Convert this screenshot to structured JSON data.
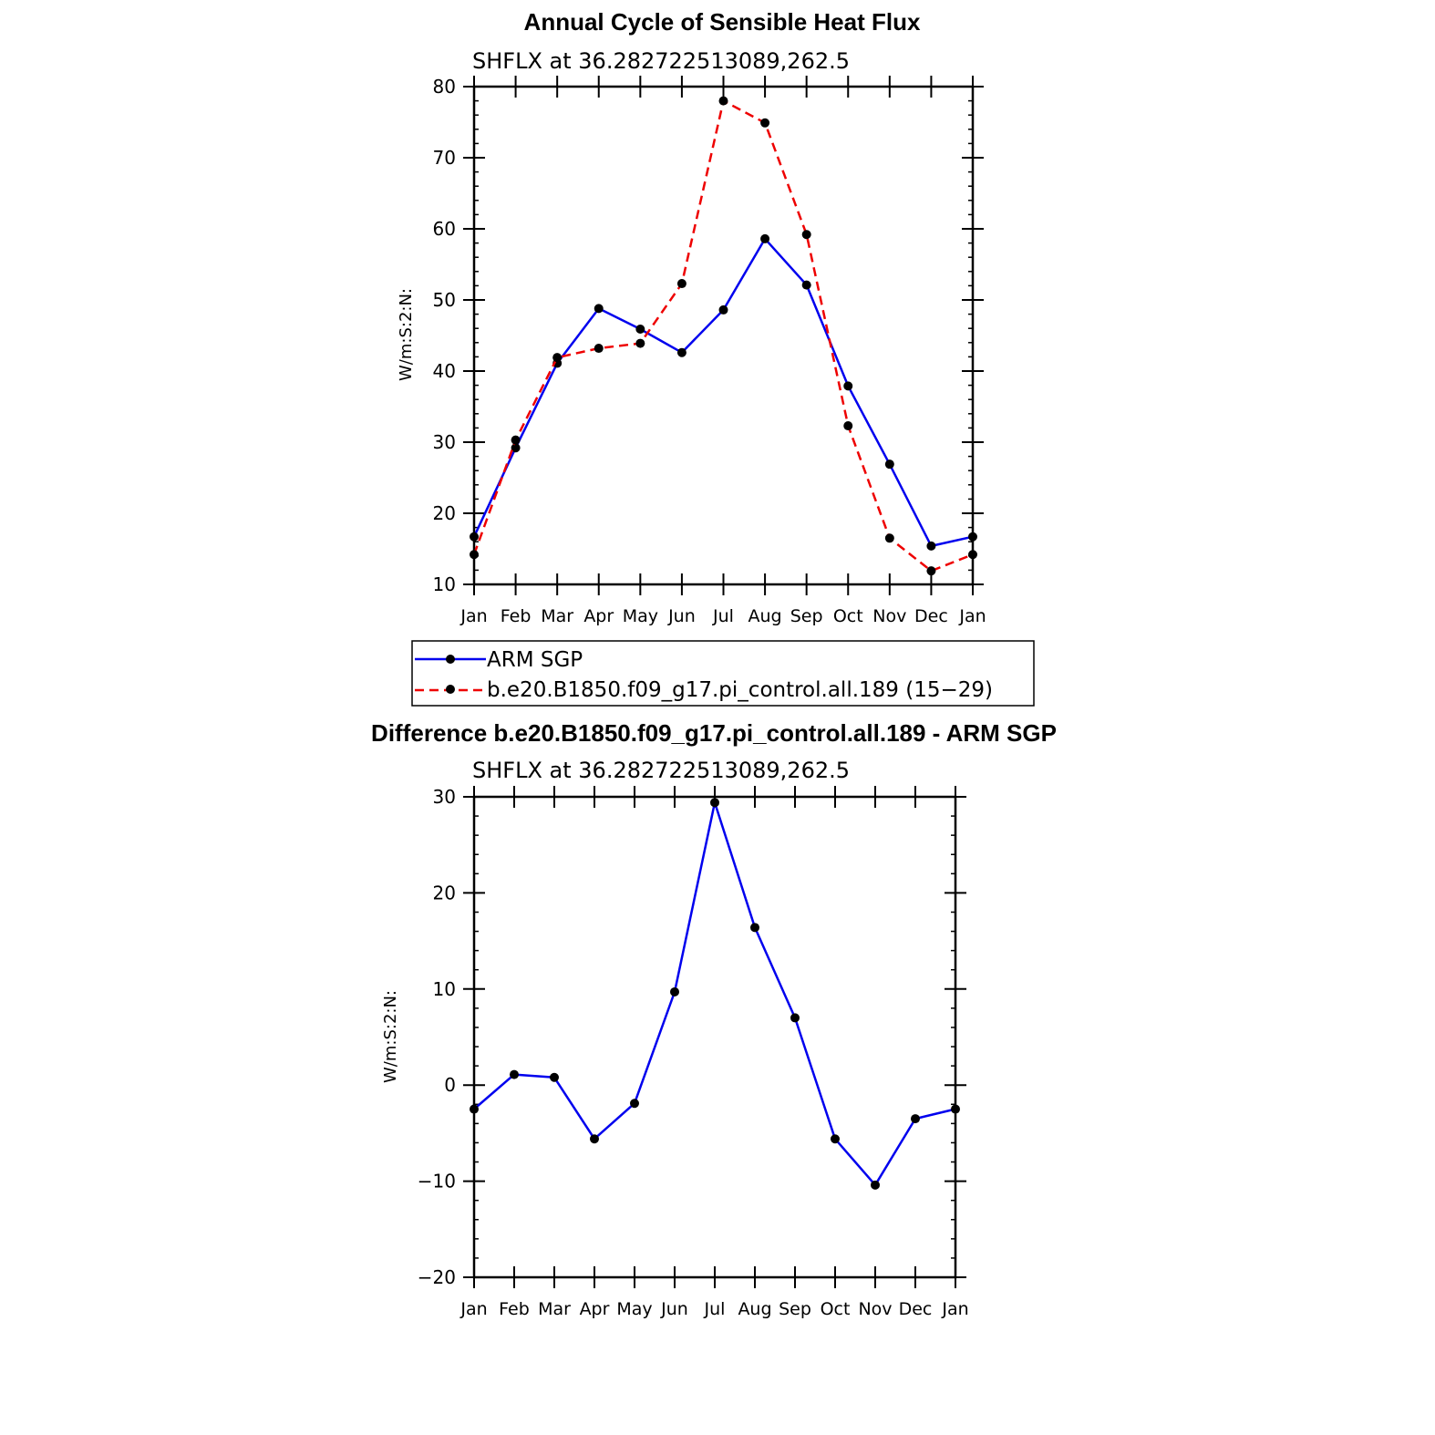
{
  "chart_data": [
    {
      "id": "annual-cycle",
      "type": "line",
      "title": "Annual Cycle of Sensible Heat Flux",
      "subtitle": "SHFLX at 36.282722513089,262.5",
      "ylabel": "W/m:S:2:N:",
      "xlabel": "",
      "categories": [
        "Jan",
        "Feb",
        "Mar",
        "Apr",
        "May",
        "Jun",
        "Jul",
        "Aug",
        "Sep",
        "Oct",
        "Nov",
        "Dec",
        "Jan"
      ],
      "ylim": [
        10,
        80
      ],
      "yticks": [
        10,
        20,
        30,
        40,
        50,
        60,
        70,
        80
      ],
      "series": [
        {
          "name": "ARM SGP",
          "color": "#0000ee",
          "dash": "solid",
          "values": [
            16.7,
            29.2,
            41.1,
            48.8,
            45.9,
            42.6,
            48.6,
            58.6,
            52.1,
            37.9,
            26.9,
            15.4,
            16.7
          ]
        },
        {
          "name": "b.e20.B1850.f09_g17.pi_control.all.189 (15−29)",
          "color": "#ee0000",
          "dash": "dashed",
          "values": [
            14.2,
            30.3,
            41.9,
            43.2,
            43.9,
            52.3,
            78.0,
            74.9,
            59.2,
            32.3,
            16.5,
            11.9,
            14.2
          ]
        }
      ],
      "legend": "below"
    },
    {
      "id": "difference",
      "type": "line",
      "title": "Difference b.e20.B1850.f09_g17.pi_control.all.189 - ARM SGP",
      "subtitle": "SHFLX at 36.282722513089,262.5",
      "ylabel": "W/m:S:2:N:",
      "xlabel": "",
      "categories": [
        "Jan",
        "Feb",
        "Mar",
        "Apr",
        "May",
        "Jun",
        "Jul",
        "Aug",
        "Sep",
        "Oct",
        "Nov",
        "Dec",
        "Jan"
      ],
      "ylim": [
        -20,
        30
      ],
      "yticks": [
        -20,
        -10,
        0,
        10,
        20,
        30
      ],
      "series": [
        {
          "name": "Difference",
          "color": "#0000ee",
          "dash": "solid",
          "values": [
            -2.5,
            1.1,
            0.8,
            -5.6,
            -1.9,
            9.7,
            29.4,
            16.4,
            7.0,
            -5.6,
            -10.4,
            -3.5,
            -2.5
          ]
        }
      ]
    }
  ]
}
